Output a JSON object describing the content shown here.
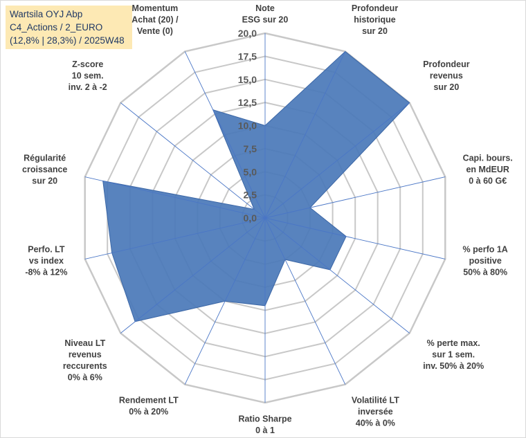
{
  "title_box": {
    "line1": "Wartsila OYJ Abp",
    "line2": "C4_Actions / 2_EURO",
    "line3": "(12,8% | 28,3%) / 2025W48"
  },
  "colors": {
    "fill": "#4a78b8",
    "fill_stroke": "#3c67a6",
    "grid": "#c8c8c8",
    "spoke": "#4a76c6",
    "title_bg": "#fde9b4"
  },
  "chart_data": {
    "type": "radar",
    "range": [
      0,
      20
    ],
    "tick_values": [
      0,
      2.5,
      5,
      7.5,
      10,
      12.5,
      15,
      17.5,
      20
    ],
    "tick_labels": [
      "0,0",
      "2,5",
      "5,0",
      "7,5",
      "10,0",
      "12,5",
      "15,0",
      "17,5",
      "20,0"
    ],
    "categories": [
      "Note\nESG sur 20",
      "Profondeur\nhistorique\nsur 20",
      "Profondeur\nrevenus\nsur 20",
      "Capi. bours.\nen MdEUR\n0 à 60 G€",
      "% perfo 1A\npositive\n50% à 80%",
      "% perte max.\nsur 1 sem.\ninv. 50% à 20%",
      "Volatilité LT\ninversée\n40% à 0%",
      "Ratio Sharpe\n0 à 1",
      "Rendement LT\n0% à 20%",
      "Niveau LT\nrevenus\nreccurents\n0% à 6%",
      "Perfo. LT\nvs index\n-8% à 12%",
      "Régularité\ncroissance\nsur 20",
      "Z-score\n10 sem.\ninv. 2 à -2",
      "Momentum\nAchat (20) /\nVente (0)"
    ],
    "series": [
      {
        "name": "Wartsila OYJ Abp",
        "values": [
          10,
          20,
          20,
          5,
          9,
          9,
          5,
          9.5,
          10,
          18,
          17,
          18,
          1.5,
          13
        ]
      }
    ]
  }
}
